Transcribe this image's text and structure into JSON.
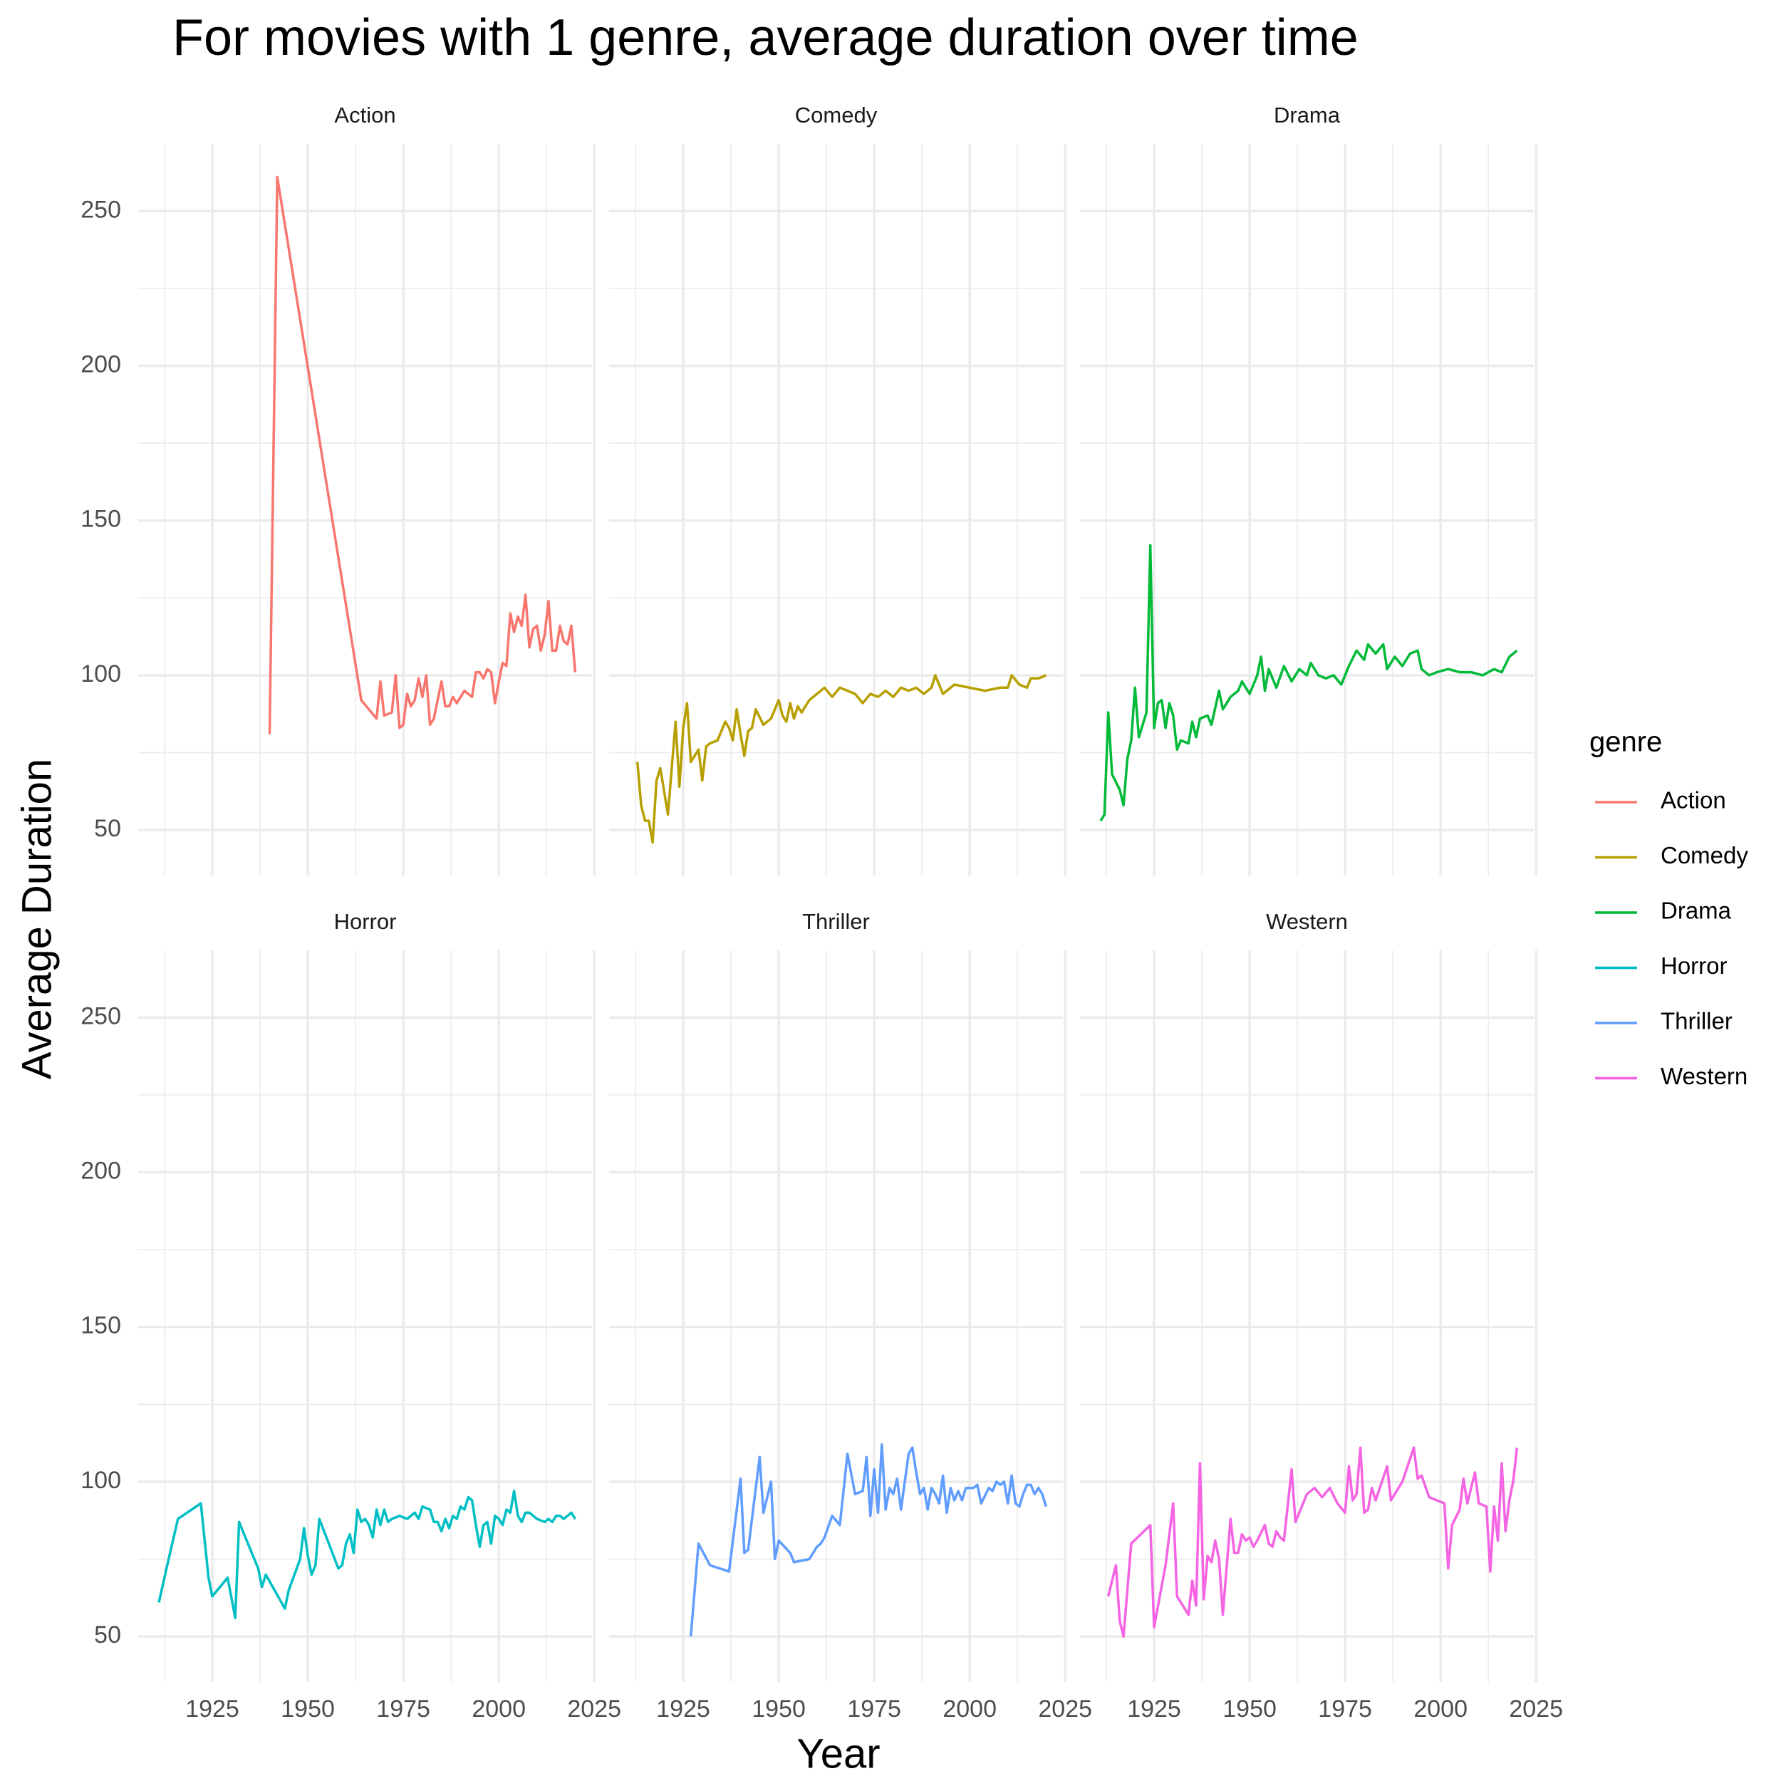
{
  "chart_data": {
    "type": "line",
    "title": "For movies with 1 genre, average duration over time",
    "x_label": "Year",
    "y_label": "Average Duration",
    "legend_title": "genre",
    "legend": "right",
    "grid": true,
    "xlim": [
      1905.6,
      2024.4
    ],
    "ylim": [
      35.3,
      271.7
    ],
    "xticks": [
      1925,
      1950,
      1975,
      2000,
      2025
    ],
    "yticks": [
      50,
      100,
      150,
      200,
      250
    ],
    "x_minor_ticks": [
      1912.5,
      1937.5,
      1962.5,
      1987.5,
      2012.5
    ],
    "y_minor_ticks": [
      75,
      125,
      175,
      225
    ],
    "series": [
      {
        "name": "Action",
        "color": "#F8766D",
        "x": [
          1940,
          1942,
          1964,
          1968,
          1969,
          1970,
          1972,
          1973,
          1974,
          1975,
          1976,
          1977,
          1978,
          1979,
          1980,
          1981,
          1982,
          1983,
          1985,
          1986,
          1987,
          1988,
          1989,
          1990,
          1991,
          1993,
          1994,
          1995,
          1996,
          1997,
          1998,
          1999,
          2000,
          2001,
          2002,
          2003,
          2004,
          2005,
          2006,
          2007,
          2008,
          2009,
          2010,
          2011,
          2012,
          2013,
          2014,
          2015,
          2016,
          2017,
          2018,
          2019,
          2020
        ],
        "values": [
          81,
          261,
          92,
          86,
          98,
          87,
          88,
          100,
          83,
          84,
          94,
          90,
          92,
          99,
          93,
          100,
          84,
          86,
          98,
          90,
          90,
          93,
          91,
          93,
          95,
          93,
          101,
          101,
          99,
          102,
          101,
          91,
          98,
          104,
          103,
          120,
          114,
          119,
          116,
          126,
          109,
          115,
          116,
          108,
          113,
          124,
          108,
          108,
          116,
          111,
          110,
          116,
          101
        ]
      },
      {
        "name": "Comedy",
        "color": "#B79F00",
        "x": [
          1913,
          1914,
          1915,
          1916,
          1917,
          1918,
          1919,
          1921,
          1923,
          1924,
          1925,
          1926,
          1927,
          1929,
          1930,
          1931,
          1932,
          1934,
          1936,
          1937,
          1938,
          1939,
          1940,
          1941,
          1942,
          1943,
          1944,
          1946,
          1948,
          1950,
          1951,
          1952,
          1953,
          1954,
          1955,
          1956,
          1958,
          1960,
          1962,
          1964,
          1966,
          1968,
          1970,
          1972,
          1974,
          1976,
          1978,
          1980,
          1982,
          1984,
          1986,
          1988,
          1990,
          1991,
          1993,
          1996,
          2000,
          2004,
          2008,
          2010,
          2011,
          2013,
          2015,
          2016,
          2018,
          2020
        ],
        "values": [
          72,
          58,
          53,
          53,
          46,
          66,
          70,
          55,
          85,
          64,
          83,
          91,
          72,
          76,
          66,
          77,
          78,
          79,
          85,
          83,
          79,
          89,
          81,
          74,
          82,
          83,
          89,
          84,
          86,
          92,
          87,
          85,
          91,
          86,
          90,
          88,
          92,
          94,
          96,
          93,
          96,
          95,
          94,
          91,
          94,
          93,
          95,
          93,
          96,
          95,
          96,
          94,
          96,
          100,
          94,
          97,
          96,
          95,
          96,
          96,
          100,
          97,
          96,
          99,
          99,
          100
        ]
      },
      {
        "name": "Drama",
        "color": "#00BA38",
        "x": [
          1911,
          1912,
          1913,
          1914,
          1916,
          1917,
          1918,
          1919,
          1920,
          1921,
          1923,
          1924,
          1925,
          1926,
          1927,
          1928,
          1929,
          1930,
          1931,
          1932,
          1934,
          1935,
          1936,
          1937,
          1939,
          1940,
          1942,
          1943,
          1945,
          1947,
          1948,
          1950,
          1952,
          1953,
          1954,
          1955,
          1957,
          1959,
          1961,
          1963,
          1965,
          1966,
          1968,
          1970,
          1972,
          1974,
          1976,
          1978,
          1980,
          1981,
          1983,
          1985,
          1986,
          1988,
          1990,
          1992,
          1994,
          1995,
          1997,
          1999,
          2002,
          2005,
          2008,
          2011,
          2014,
          2016,
          2018,
          2020
        ],
        "values": [
          53,
          55,
          88,
          68,
          63,
          58,
          73,
          79,
          96,
          80,
          88,
          142,
          83,
          91,
          92,
          83,
          91,
          87,
          76,
          79,
          78,
          85,
          80,
          86,
          87,
          84,
          95,
          89,
          93,
          95,
          98,
          94,
          100,
          106,
          95,
          102,
          96,
          103,
          98,
          102,
          100,
          104,
          100,
          99,
          100,
          97,
          103,
          108,
          105,
          110,
          107,
          110,
          102,
          106,
          103,
          107,
          108,
          102,
          100,
          101,
          102,
          101,
          101,
          100,
          102,
          101,
          106,
          108
        ]
      },
      {
        "name": "Horror",
        "color": "#00BFC4",
        "x": [
          1911,
          1913,
          1916,
          1922,
          1924,
          1925,
          1929,
          1931,
          1932,
          1937,
          1938,
          1939,
          1944,
          1945,
          1948,
          1949,
          1950,
          1951,
          1952,
          1953,
          1958,
          1959,
          1960,
          1961,
          1962,
          1963,
          1964,
          1965,
          1966,
          1967,
          1968,
          1969,
          1970,
          1971,
          1972,
          1974,
          1976,
          1978,
          1979,
          1980,
          1982,
          1983,
          1984,
          1985,
          1986,
          1987,
          1988,
          1989,
          1990,
          1991,
          1992,
          1993,
          1994,
          1995,
          1996,
          1997,
          1998,
          1999,
          2000,
          2001,
          2002,
          2003,
          2004,
          2005,
          2006,
          2007,
          2008,
          2009,
          2010,
          2012,
          2013,
          2014,
          2015,
          2016,
          2017,
          2018,
          2019,
          2020
        ],
        "values": [
          61,
          72,
          88,
          93,
          69,
          63,
          69,
          56,
          87,
          72,
          66,
          70,
          59,
          65,
          75,
          85,
          76,
          70,
          73,
          88,
          72,
          73,
          80,
          83,
          77,
          91,
          87,
          88,
          86,
          82,
          91,
          86,
          91,
          87,
          88,
          89,
          88,
          90,
          88,
          92,
          91,
          87,
          87,
          84,
          88,
          85,
          89,
          88,
          92,
          91,
          95,
          94,
          86,
          79,
          86,
          87,
          80,
          89,
          88,
          86,
          91,
          90,
          97,
          89,
          87,
          90,
          90,
          89,
          88,
          87,
          88,
          87,
          89,
          89,
          88,
          89,
          90,
          88
        ]
      },
      {
        "name": "Thriller",
        "color": "#619CFF",
        "x": [
          1927,
          1929,
          1932,
          1937,
          1940,
          1941,
          1942,
          1945,
          1946,
          1948,
          1949,
          1950,
          1953,
          1954,
          1958,
          1960,
          1961,
          1962,
          1964,
          1966,
          1968,
          1970,
          1972,
          1973,
          1974,
          1975,
          1976,
          1977,
          1978,
          1979,
          1980,
          1981,
          1982,
          1984,
          1985,
          1986,
          1987,
          1988,
          1989,
          1990,
          1991,
          1992,
          1993,
          1994,
          1995,
          1996,
          1997,
          1998,
          1999,
          2000,
          2001,
          2002,
          2003,
          2005,
          2006,
          2007,
          2008,
          2009,
          2010,
          2011,
          2012,
          2013,
          2014,
          2015,
          2016,
          2017,
          2018,
          2019,
          2020
        ],
        "values": [
          50,
          80,
          73,
          71,
          101,
          77,
          78,
          108,
          90,
          100,
          75,
          81,
          77,
          74,
          75,
          79,
          80,
          82,
          89,
          86,
          109,
          96,
          97,
          108,
          89,
          104,
          90,
          112,
          91,
          98,
          96,
          101,
          91,
          109,
          111,
          103,
          96,
          98,
          91,
          98,
          96,
          93,
          102,
          90,
          98,
          94,
          97,
          94,
          98,
          98,
          98,
          99,
          93,
          98,
          97,
          100,
          99,
          100,
          93,
          102,
          93,
          92,
          96,
          99,
          99,
          96,
          98,
          96,
          92
        ]
      },
      {
        "name": "Western",
        "color": "#F564E3",
        "x": [
          1913,
          1915,
          1916,
          1917,
          1919,
          1924,
          1925,
          1928,
          1930,
          1931,
          1934,
          1935,
          1936,
          1937,
          1938,
          1939,
          1940,
          1941,
          1942,
          1943,
          1945,
          1946,
          1947,
          1948,
          1949,
          1950,
          1951,
          1952,
          1954,
          1955,
          1956,
          1957,
          1958,
          1959,
          1961,
          1962,
          1963,
          1965,
          1967,
          1969,
          1971,
          1973,
          1975,
          1976,
          1977,
          1978,
          1979,
          1980,
          1981,
          1982,
          1983,
          1986,
          1987,
          1990,
          1993,
          1994,
          1995,
          1997,
          2001,
          2002,
          2003,
          2005,
          2006,
          2007,
          2009,
          2010,
          2012,
          2013,
          2014,
          2015,
          2016,
          2017,
          2018,
          2019,
          2020
        ],
        "values": [
          63,
          73,
          55,
          50,
          80,
          86,
          53,
          73,
          93,
          63,
          57,
          68,
          60,
          106,
          62,
          76,
          74,
          81,
          75,
          57,
          88,
          77,
          77,
          83,
          81,
          82,
          79,
          81,
          86,
          80,
          79,
          84,
          82,
          81,
          104,
          87,
          90,
          96,
          98,
          95,
          98,
          93,
          90,
          105,
          94,
          96,
          111,
          90,
          91,
          98,
          94,
          105,
          94,
          100,
          111,
          101,
          102,
          95,
          93,
          72,
          86,
          91,
          101,
          93,
          103,
          93,
          92,
          71,
          92,
          81,
          106,
          84,
          94,
          100,
          111
        ]
      }
    ]
  }
}
